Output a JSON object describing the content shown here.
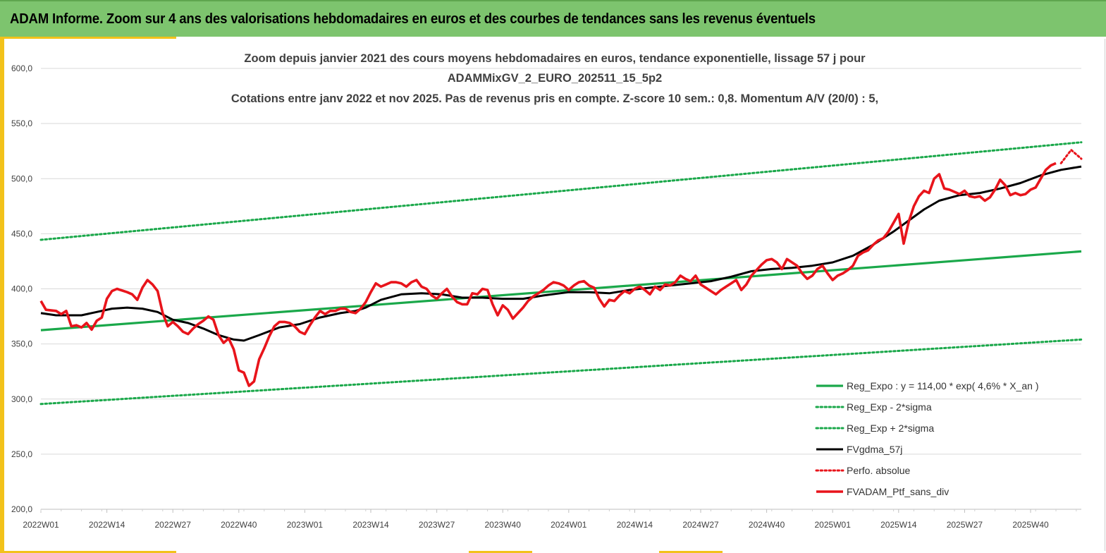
{
  "header": {
    "title": "ADAM Informe. Zoom sur 4 ans des valorisations hebdomadaires en euros et des courbes de tendances sans les revenus éventuels"
  },
  "colors": {
    "banner": "#7dc46e",
    "accent": "#f2c21a",
    "trend": "#1aa84a",
    "band": "#1aa84a",
    "moving_average": "#000000",
    "price": "#e8141b"
  },
  "chart_data": {
    "type": "line",
    "title_lines": [
      "Zoom depuis janvier 2021 des cours moyens hebdomadaires  en euros, tendance exponentielle, lissage 57 j pour",
      "ADAMMixGV_2_EURO_202511_15_5p2",
      "Cotations entre janv 2022 et nov 2025. Pas de revenus pris en compte. Z-score 10 sem.: 0,8. Momentum A/V (20/0) : 5,"
    ],
    "xlabel": "",
    "ylabel": "",
    "x_tick_labels": [
      "2022W01",
      "2022W14",
      "2022W27",
      "2022W40",
      "2023W01",
      "2023W14",
      "2023W27",
      "2023W40",
      "2024W01",
      "2024W14",
      "2024W27",
      "2024W40",
      "2025W01",
      "2025W14",
      "2025W27",
      "2025W40"
    ],
    "y_tick_labels": [
      "200,0",
      "250,0",
      "300,0",
      "350,0",
      "400,0",
      "450,0",
      "500,0",
      "550,0",
      "600,0"
    ],
    "ylim": [
      200,
      600
    ],
    "x_axis": "ISO week (weekly index starting 2022W01)",
    "grid": "horizontal",
    "legend_position": "bottom-right",
    "series": [
      {
        "name": "Reg_Expo : y = 114,00 * exp( 4,6% *  X_an )",
        "style": "solid-green",
        "x": [
          "2022W01",
          "2025W50"
        ],
        "values": [
          362.5,
          434.0
        ]
      },
      {
        "name": "Reg_Exp - 2*sigma",
        "style": "dotted-green",
        "x": [
          "2022W01",
          "2025W50"
        ],
        "values": [
          295.5,
          354.0
        ]
      },
      {
        "name": "Reg_Exp + 2*sigma",
        "style": "dotted-green",
        "x": [
          "2022W01",
          "2025W50"
        ],
        "values": [
          444.5,
          533.0
        ]
      },
      {
        "name": "FVgdma_57j",
        "style": "solid-black",
        "points": [
          [
            "2022W01",
            378
          ],
          [
            "2022W04",
            376
          ],
          [
            "2022W09",
            376
          ],
          [
            "2022W12",
            379
          ],
          [
            "2022W15",
            382
          ],
          [
            "2022W18",
            383
          ],
          [
            "2022W21",
            382
          ],
          [
            "2022W24",
            379
          ],
          [
            "2022W27",
            372
          ],
          [
            "2022W30",
            369
          ],
          [
            "2022W33",
            364
          ],
          [
            "2022W36",
            358
          ],
          [
            "2022W39",
            354
          ],
          [
            "2022W41",
            353
          ],
          [
            "2022W44",
            358
          ],
          [
            "2022W48",
            365
          ],
          [
            "2022W52",
            368
          ],
          [
            "2023W04",
            374
          ],
          [
            "2023W08",
            378
          ],
          [
            "2023W11",
            380
          ],
          [
            "2023W13",
            383
          ],
          [
            "2023W16",
            390
          ],
          [
            "2023W20",
            395
          ],
          [
            "2023W24",
            396
          ],
          [
            "2023W28",
            395
          ],
          [
            "2023W32",
            392
          ],
          [
            "2023W36",
            392
          ],
          [
            "2023W40",
            391
          ],
          [
            "2023W44",
            391
          ],
          [
            "2023W48",
            394
          ],
          [
            "2024W01",
            397
          ],
          [
            "2024W05",
            397
          ],
          [
            "2024W09",
            396
          ],
          [
            "2024W13",
            399
          ],
          [
            "2024W17",
            401
          ],
          [
            "2024W21",
            403
          ],
          [
            "2024W25",
            405
          ],
          [
            "2024W29",
            407
          ],
          [
            "2024W33",
            411
          ],
          [
            "2024W37",
            416
          ],
          [
            "2024W41",
            418
          ],
          [
            "2024W45",
            419
          ],
          [
            "2024W49",
            421
          ],
          [
            "2025W01",
            424
          ],
          [
            "2025W05",
            430
          ],
          [
            "2025W09",
            440
          ],
          [
            "2025W13",
            452
          ],
          [
            "2025W16",
            462
          ],
          [
            "2025W19",
            472
          ],
          [
            "2025W22",
            480
          ],
          [
            "2025W26",
            485
          ],
          [
            "2025W30",
            487
          ],
          [
            "2025W34",
            491
          ],
          [
            "2025W38",
            496
          ],
          [
            "2025W42",
            503
          ],
          [
            "2025W46",
            508
          ],
          [
            "2025W50",
            511
          ]
        ]
      },
      {
        "name": "Perfo. absolue",
        "style": "dotted-red",
        "points": [
          [
            "2025W46",
            514
          ],
          [
            "2025W48",
            526
          ],
          [
            "2025W50",
            518
          ]
        ]
      },
      {
        "name": "FVADAM_Ptf_sans_div",
        "style": "solid-red",
        "points": [
          [
            "2022W01",
            389
          ],
          [
            "2022W02",
            381
          ],
          [
            "2022W04",
            380
          ],
          [
            "2022W05",
            377
          ],
          [
            "2022W06",
            380
          ],
          [
            "2022W07",
            366
          ],
          [
            "2022W08",
            367
          ],
          [
            "2022W09",
            365
          ],
          [
            "2022W10",
            369
          ],
          [
            "2022W11",
            363
          ],
          [
            "2022W12",
            371
          ],
          [
            "2022W13",
            374
          ],
          [
            "2022W14",
            391
          ],
          [
            "2022W15",
            398
          ],
          [
            "2022W16",
            400
          ],
          [
            "2022W18",
            397
          ],
          [
            "2022W19",
            395
          ],
          [
            "2022W20",
            390
          ],
          [
            "2022W21",
            401
          ],
          [
            "2022W22",
            408
          ],
          [
            "2022W23",
            404
          ],
          [
            "2022W24",
            398
          ],
          [
            "2022W25",
            378
          ],
          [
            "2022W26",
            366
          ],
          [
            "2022W27",
            370
          ],
          [
            "2022W28",
            366
          ],
          [
            "2022W29",
            361
          ],
          [
            "2022W30",
            359
          ],
          [
            "2022W31",
            364
          ],
          [
            "2022W32",
            368
          ],
          [
            "2022W33",
            371
          ],
          [
            "2022W34",
            375
          ],
          [
            "2022W35",
            372
          ],
          [
            "2022W36",
            358
          ],
          [
            "2022W37",
            351
          ],
          [
            "2022W38",
            355
          ],
          [
            "2022W39",
            345
          ],
          [
            "2022W40",
            326
          ],
          [
            "2022W41",
            324
          ],
          [
            "2022W42",
            312
          ],
          [
            "2022W43",
            316
          ],
          [
            "2022W44",
            336
          ],
          [
            "2022W45",
            346
          ],
          [
            "2022W46",
            357
          ],
          [
            "2022W47",
            366
          ],
          [
            "2022W48",
            370
          ],
          [
            "2022W49",
            370
          ],
          [
            "2022W50",
            369
          ],
          [
            "2022W51",
            366
          ],
          [
            "2022W52",
            361
          ],
          [
            "2023W01",
            359
          ],
          [
            "2023W02",
            367
          ],
          [
            "2023W03",
            374
          ],
          [
            "2023W04",
            380
          ],
          [
            "2023W05",
            377
          ],
          [
            "2023W06",
            380
          ],
          [
            "2023W07",
            380
          ],
          [
            "2023W08",
            382
          ],
          [
            "2023W09",
            382
          ],
          [
            "2023W10",
            379
          ],
          [
            "2023W11",
            378
          ],
          [
            "2023W12",
            382
          ],
          [
            "2023W13",
            388
          ],
          [
            "2023W14",
            397
          ],
          [
            "2023W15",
            405
          ],
          [
            "2023W16",
            402
          ],
          [
            "2023W17",
            404
          ],
          [
            "2023W18",
            406
          ],
          [
            "2023W19",
            406
          ],
          [
            "2023W20",
            405
          ],
          [
            "2023W21",
            402
          ],
          [
            "2023W22",
            406
          ],
          [
            "2023W23",
            408
          ],
          [
            "2023W24",
            402
          ],
          [
            "2023W25",
            400
          ],
          [
            "2023W26",
            394
          ],
          [
            "2023W27",
            391
          ],
          [
            "2023W28",
            396
          ],
          [
            "2023W29",
            400
          ],
          [
            "2023W30",
            393
          ],
          [
            "2023W31",
            388
          ],
          [
            "2023W32",
            386
          ],
          [
            "2023W33",
            386
          ],
          [
            "2023W34",
            396
          ],
          [
            "2023W35",
            395
          ],
          [
            "2023W36",
            400
          ],
          [
            "2023W37",
            399
          ],
          [
            "2023W38",
            386
          ],
          [
            "2023W39",
            376
          ],
          [
            "2023W40",
            385
          ],
          [
            "2023W41",
            381
          ],
          [
            "2023W42",
            373
          ],
          [
            "2023W43",
            378
          ],
          [
            "2023W44",
            383
          ],
          [
            "2023W45",
            389
          ],
          [
            "2023W46",
            393
          ],
          [
            "2023W47",
            396
          ],
          [
            "2023W48",
            399
          ],
          [
            "2023W49",
            403
          ],
          [
            "2023W50",
            406
          ],
          [
            "2023W51",
            405
          ],
          [
            "2023W52",
            403
          ],
          [
            "2024W01",
            399
          ],
          [
            "2024W02",
            403
          ],
          [
            "2024W03",
            406
          ],
          [
            "2024W04",
            407
          ],
          [
            "2024W05",
            403
          ],
          [
            "2024W06",
            401
          ],
          [
            "2024W07",
            391
          ],
          [
            "2024W08",
            384
          ],
          [
            "2024W09",
            390
          ],
          [
            "2024W10",
            389
          ],
          [
            "2024W11",
            394
          ],
          [
            "2024W12",
            398
          ],
          [
            "2024W13",
            396
          ],
          [
            "2024W14",
            400
          ],
          [
            "2024W15",
            402
          ],
          [
            "2024W16",
            399
          ],
          [
            "2024W17",
            395
          ],
          [
            "2024W18",
            402
          ],
          [
            "2024W19",
            399
          ],
          [
            "2024W20",
            404
          ],
          [
            "2024W21",
            403
          ],
          [
            "2024W22",
            406
          ],
          [
            "2024W23",
            412
          ],
          [
            "2024W24",
            409
          ],
          [
            "2024W25",
            407
          ],
          [
            "2024W26",
            412
          ],
          [
            "2024W27",
            404
          ],
          [
            "2024W28",
            401
          ],
          [
            "2024W29",
            398
          ],
          [
            "2024W30",
            395
          ],
          [
            "2024W31",
            399
          ],
          [
            "2024W32",
            402
          ],
          [
            "2024W33",
            405
          ],
          [
            "2024W34",
            408
          ],
          [
            "2024W35",
            399
          ],
          [
            "2024W36",
            404
          ],
          [
            "2024W37",
            412
          ],
          [
            "2024W38",
            417
          ],
          [
            "2024W39",
            422
          ],
          [
            "2024W40",
            426
          ],
          [
            "2024W41",
            427
          ],
          [
            "2024W42",
            424
          ],
          [
            "2024W43",
            418
          ],
          [
            "2024W44",
            427
          ],
          [
            "2024W45",
            424
          ],
          [
            "2024W46",
            421
          ],
          [
            "2024W47",
            414
          ],
          [
            "2024W48",
            409
          ],
          [
            "2024W49",
            412
          ],
          [
            "2024W50",
            418
          ],
          [
            "2024W51",
            421
          ],
          [
            "2024W52",
            414
          ],
          [
            "2025W01",
            408
          ],
          [
            "2025W02",
            412
          ],
          [
            "2025W03",
            414
          ],
          [
            "2025W04",
            417
          ],
          [
            "2025W05",
            421
          ],
          [
            "2025W06",
            430
          ],
          [
            "2025W07",
            433
          ],
          [
            "2025W08",
            435
          ],
          [
            "2025W09",
            440
          ],
          [
            "2025W10",
            444
          ],
          [
            "2025W11",
            446
          ],
          [
            "2025W12",
            452
          ],
          [
            "2025W13",
            460
          ],
          [
            "2025W14",
            468
          ],
          [
            "2025W15",
            441
          ],
          [
            "2025W16",
            461
          ],
          [
            "2025W17",
            475
          ],
          [
            "2025W18",
            484
          ],
          [
            "2025W19",
            489
          ],
          [
            "2025W20",
            487
          ],
          [
            "2025W21",
            500
          ],
          [
            "2025W22",
            504
          ],
          [
            "2025W23",
            491
          ],
          [
            "2025W24",
            490
          ],
          [
            "2025W25",
            488
          ],
          [
            "2025W26",
            486
          ],
          [
            "2025W27",
            489
          ],
          [
            "2025W28",
            484
          ],
          [
            "2025W29",
            483
          ],
          [
            "2025W30",
            484
          ],
          [
            "2025W31",
            480
          ],
          [
            "2025W32",
            483
          ],
          [
            "2025W33",
            490
          ],
          [
            "2025W34",
            499
          ],
          [
            "2025W35",
            494
          ],
          [
            "2025W36",
            485
          ],
          [
            "2025W37",
            487
          ],
          [
            "2025W38",
            485
          ],
          [
            "2025W39",
            486
          ],
          [
            "2025W40",
            490
          ],
          [
            "2025W41",
            492
          ],
          [
            "2025W42",
            500
          ],
          [
            "2025W43",
            508
          ],
          [
            "2025W44",
            512
          ],
          [
            "2025W45",
            514
          ]
        ]
      }
    ]
  }
}
